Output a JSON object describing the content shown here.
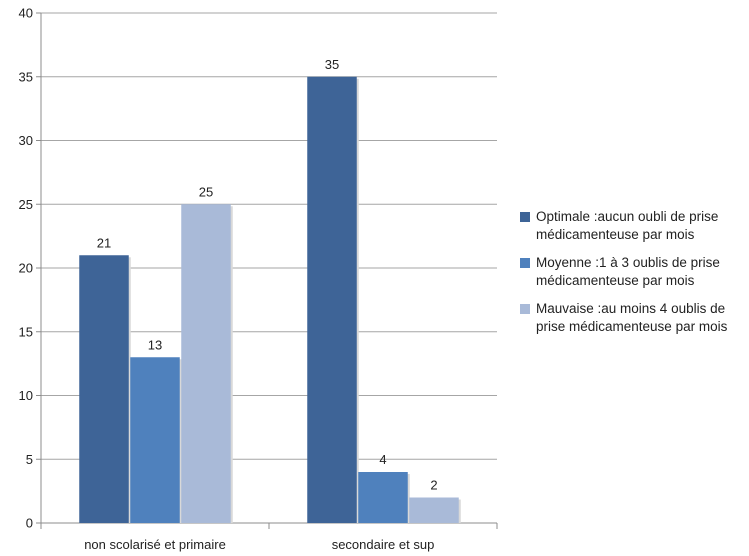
{
  "chart_data": {
    "type": "bar",
    "title": "",
    "xlabel": "",
    "ylabel": "",
    "ylim": [
      0,
      40
    ],
    "yticks": [
      0,
      5,
      10,
      15,
      20,
      25,
      30,
      35,
      40
    ],
    "grid": true,
    "legend_position": "right",
    "categories": [
      "non scolarisé et primaire",
      "secondaire et sup"
    ],
    "series": [
      {
        "name": "Optimale :aucun oubli de prise médicamenteuse par mois",
        "color": "#3e6497",
        "values": [
          21,
          35
        ]
      },
      {
        "name": "Moyenne :1 à 3 oublis de prise médicamenteuse par mois",
        "color": "#4f81bd",
        "values": [
          13,
          4
        ]
      },
      {
        "name": "Mauvaise :au moins 4 oublis de prise médicamenteuse par mois",
        "color": "#a9bad8",
        "values": [
          25,
          2
        ]
      }
    ]
  },
  "legend": {
    "items": [
      {
        "line1": "Optimale :aucun oubli de prise",
        "line2": "médicamenteuse par mois",
        "color": "#3e6497"
      },
      {
        "line1": "Moyenne :1 à 3 oublis de prise",
        "line2": "médicamenteuse par mois",
        "color": "#4f81bd"
      },
      {
        "line1": "Mauvaise :au moins 4 oublis de",
        "line2": "prise médicamenteuse par mois",
        "color": "#a9bad8"
      }
    ]
  }
}
